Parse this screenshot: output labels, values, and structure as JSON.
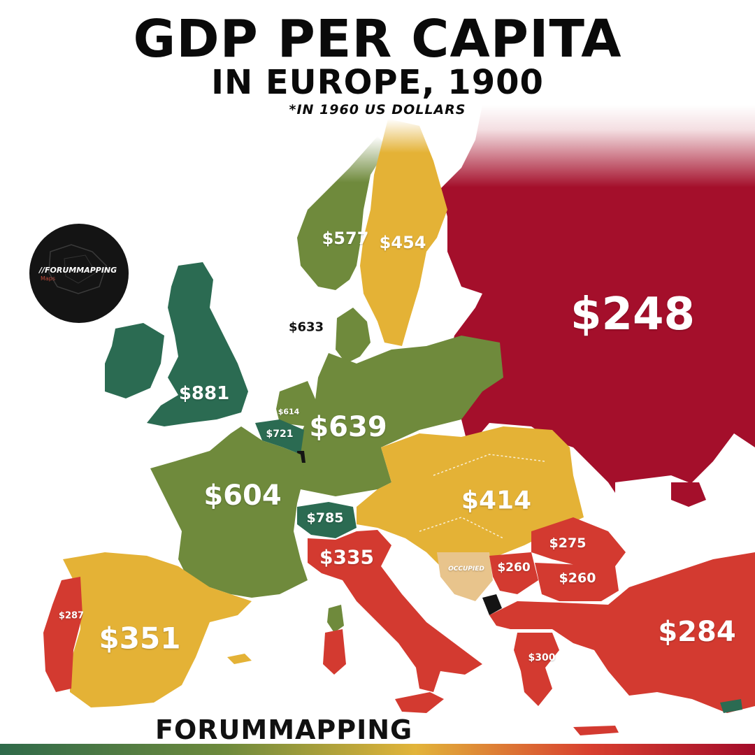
{
  "title": {
    "line1": "GDP PER CAPITA",
    "line2": "IN EUROPE, 1900",
    "note": "*IN 1960 US DOLLARS"
  },
  "colors": {
    "highest": "#2b6b52",
    "high": "#6f8a3c",
    "middle": "#e4b236",
    "low": "#d33a30",
    "lowest": "#a40f2b",
    "occupied": "#e8c48c",
    "sea": "#ffffff"
  },
  "badge": {
    "text": "//FORUMMAPPING",
    "sub": "Maps"
  },
  "regions": [
    {
      "id": "russia",
      "value": "$248",
      "color": "lowest"
    },
    {
      "id": "uk",
      "value": "$881",
      "color": "highest"
    },
    {
      "id": "switzerland",
      "value": "$785",
      "color": "highest"
    },
    {
      "id": "belgium",
      "value": "$721",
      "color": "highest"
    },
    {
      "id": "germany",
      "value": "$639",
      "color": "high"
    },
    {
      "id": "denmark",
      "value": "$633",
      "color": "high"
    },
    {
      "id": "netherlands",
      "value": "$614",
      "color": "high"
    },
    {
      "id": "france",
      "value": "$604",
      "color": "high"
    },
    {
      "id": "norway",
      "value": "$577",
      "color": "high"
    },
    {
      "id": "sweden",
      "value": "$454",
      "color": "middle"
    },
    {
      "id": "austria-hungary",
      "value": "$414",
      "color": "middle"
    },
    {
      "id": "spain",
      "value": "$351",
      "color": "middle"
    },
    {
      "id": "italy",
      "value": "$335",
      "color": "low"
    },
    {
      "id": "greece",
      "value": "$300",
      "color": "low"
    },
    {
      "id": "portugal",
      "value": "$287",
      "color": "low"
    },
    {
      "id": "ottoman",
      "value": "$284",
      "color": "low"
    },
    {
      "id": "romania",
      "value": "$275",
      "color": "low"
    },
    {
      "id": "serbia",
      "value": "$260",
      "color": "low"
    },
    {
      "id": "bulgaria",
      "value": "$260",
      "color": "low"
    },
    {
      "id": "bosnia",
      "value": "OCCUPIED",
      "color": "occupied"
    }
  ],
  "footer": "FORUMMAPPING"
}
